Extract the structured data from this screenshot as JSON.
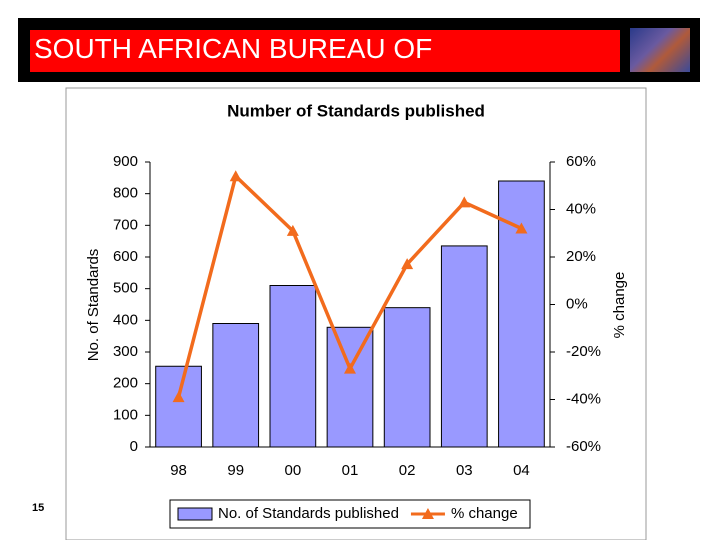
{
  "header": {
    "title": "SOUTH AFRICAN BUREAU OF"
  },
  "page_number": "15",
  "chart_data": {
    "type": "combo",
    "title": "Number of Standards published",
    "categories": [
      "98",
      "99",
      "00",
      "01",
      "02",
      "03",
      "04"
    ],
    "y_label": "No. of Standards",
    "y2_label": "% change",
    "ylim": [
      0,
      900
    ],
    "yticks": [
      0,
      100,
      200,
      300,
      400,
      500,
      600,
      700,
      800,
      900
    ],
    "y2lim": [
      -60,
      60
    ],
    "y2ticks": [
      {
        "value": -60,
        "label": "-60%"
      },
      {
        "value": -40,
        "label": "-40%"
      },
      {
        "value": -20,
        "label": "-20%"
      },
      {
        "value": 0,
        "label": "0%"
      },
      {
        "value": 20,
        "label": "20%"
      },
      {
        "value": 40,
        "label": "40%"
      },
      {
        "value": 60,
        "label": "60%"
      }
    ],
    "legend": "bottom",
    "series": [
      {
        "name": "No. of Standards published",
        "type": "bar",
        "color": "#9999ff",
        "values": [
          255,
          390,
          510,
          378,
          440,
          635,
          840
        ]
      },
      {
        "name": "% change",
        "type": "line",
        "axis": "y2",
        "color": "#f26b1d",
        "values": [
          -39,
          54,
          31,
          -27,
          17,
          43,
          32
        ]
      }
    ]
  }
}
